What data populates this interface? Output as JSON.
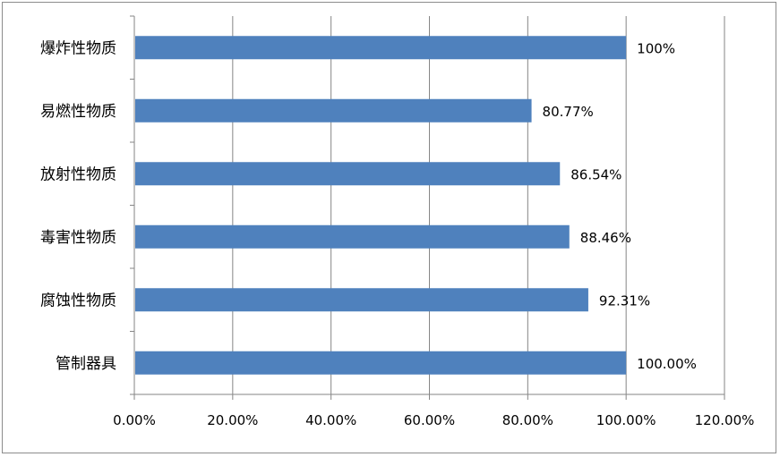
{
  "chart_data": {
    "type": "bar",
    "orientation": "horizontal",
    "categories": [
      "爆炸性物质",
      "易燃性物质",
      "放射性物质",
      "毒害性物质",
      "腐蚀性物质",
      "管制器具"
    ],
    "values": [
      100,
      80.77,
      86.54,
      88.46,
      92.31,
      100
    ],
    "data_labels": [
      "100%",
      "80.77%",
      "86.54%",
      "88.46%",
      "92.31%",
      "100.00%"
    ],
    "x_ticks": [
      "0.00%",
      "20.00%",
      "40.00%",
      "60.00%",
      "80.00%",
      "100.00%",
      "120.00%"
    ],
    "xlim": [
      0,
      120
    ],
    "x_unit": "percent",
    "grid": "vertical major gridlines",
    "legend": "none",
    "bar_color": "#4f81bd",
    "title": "",
    "xlabel": "",
    "ylabel": ""
  }
}
